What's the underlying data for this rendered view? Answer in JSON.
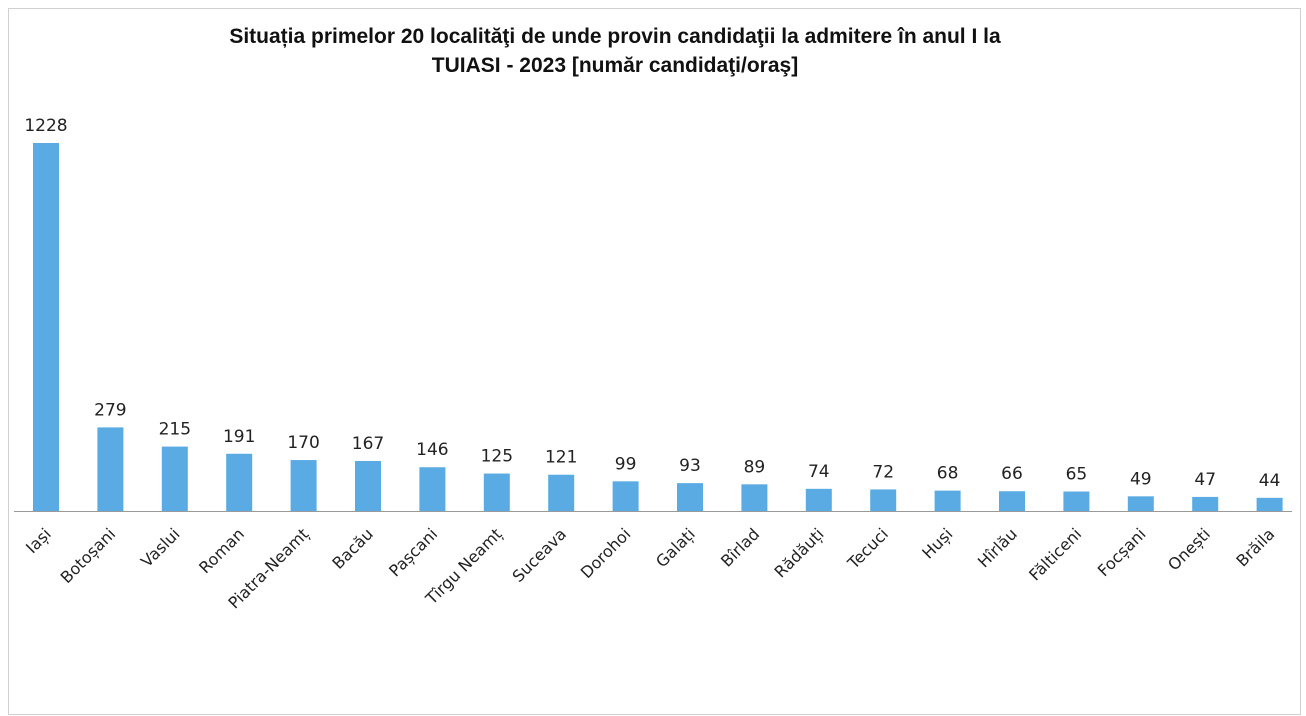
{
  "chart_data": {
    "type": "bar",
    "title_line1": "Situația primelor 20 localităţi de unde provin candidaţii la admitere în anul I la",
    "title_line2": "TUIASI - 2023 [număr candidaţi/oraş]",
    "categories": [
      "Iași",
      "Botoșani",
      "Vaslui",
      "Roman",
      "Piatra-Neamț",
      "Bacău",
      "Pașcani",
      "Tîrgu Neamț",
      "Suceava",
      "Dorohoi",
      "Galați",
      "Bîrlad",
      "Rădăuți",
      "Tecuci",
      "Huși",
      "Hîrlău",
      "Fălticeni",
      "Focșani",
      "Onești",
      "Brăila"
    ],
    "values": [
      1228,
      279,
      215,
      191,
      170,
      167,
      146,
      125,
      121,
      99,
      93,
      89,
      74,
      72,
      68,
      66,
      65,
      49,
      47,
      44
    ],
    "xlabel": "",
    "ylabel": "",
    "ylim": [
      0,
      1228
    ],
    "grid": false,
    "legend": "none",
    "bar_color": "#5aabe3"
  }
}
